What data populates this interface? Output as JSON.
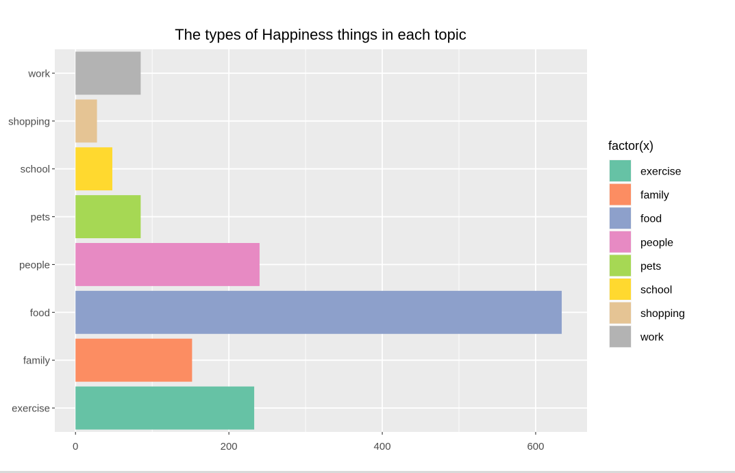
{
  "chart_data": {
    "type": "bar",
    "orientation": "horizontal",
    "title": "The types of Happiness things in each topic",
    "xlabel": "",
    "ylabel": "",
    "categories": [
      "exercise",
      "family",
      "food",
      "people",
      "pets",
      "school",
      "shopping",
      "work"
    ],
    "values": [
      233,
      152,
      634,
      240,
      85,
      48,
      28,
      85
    ],
    "xlim": [
      -27,
      667
    ],
    "xticks": [
      0,
      200,
      400,
      600
    ],
    "tick_labels": [
      "0",
      "200",
      "400",
      "600"
    ],
    "grid": true,
    "legend_position": "right",
    "legend": {
      "title": "factor(x)",
      "entries": [
        "exercise",
        "family",
        "food",
        "people",
        "pets",
        "school",
        "shopping",
        "work"
      ]
    },
    "colors": {
      "exercise": "#66c2a5",
      "family": "#fc8d62",
      "food": "#8da0cb",
      "people": "#e78ac3",
      "pets": "#a6d854",
      "school": "#ffd92f",
      "shopping": "#e5c494",
      "work": "#b3b3b3"
    },
    "panel_background": "#ebebeb",
    "grid_color": "#ffffff"
  }
}
